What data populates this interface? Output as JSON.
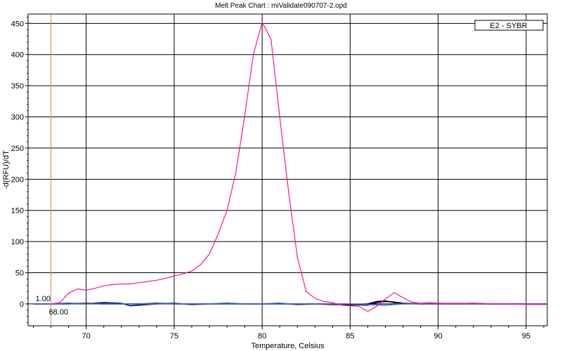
{
  "chart_data": {
    "type": "line",
    "title": "Melt Peak Chart : miValidate090707-2.opd",
    "xlabel": "Temperature, Celsius",
    "ylabel": "-d(RFU)/dT",
    "xlim": [
      66.7,
      96.2
    ],
    "ylim": [
      -35,
      465
    ],
    "x_ticks": [
      70,
      75,
      80,
      85,
      90,
      95
    ],
    "y_ticks": [
      0,
      50,
      100,
      150,
      200,
      250,
      300,
      350,
      400,
      450
    ],
    "grid": true,
    "legend_position": "top-right",
    "legend": [
      "E2 - SYBR"
    ],
    "marker": {
      "x": 68.0,
      "label_x": "68.00",
      "label_y": "1.00",
      "color": "#d08a50"
    },
    "series": [
      {
        "name": "E2 - SYBR",
        "color": "#ff1493",
        "x": [
          68.0,
          68.5,
          69.0,
          69.5,
          70.0,
          70.5,
          71.0,
          71.5,
          72.0,
          72.5,
          73.0,
          73.5,
          74.0,
          74.5,
          75.0,
          75.5,
          76.0,
          76.5,
          77.0,
          77.5,
          78.0,
          78.5,
          79.0,
          79.5,
          80.0,
          80.5,
          81.0,
          81.5,
          82.0,
          82.5,
          83.0,
          83.5,
          84.0,
          84.5,
          85.0,
          85.5,
          86.0,
          86.5,
          87.0,
          87.5,
          88.0,
          88.5,
          89.0,
          89.5,
          90.0,
          91.0,
          92.0,
          93.0,
          94.0,
          95.0,
          96.2
        ],
        "values": [
          0,
          2,
          17,
          24,
          22,
          25,
          29,
          31,
          32,
          32,
          34,
          36,
          38,
          41,
          45,
          48,
          53,
          63,
          80,
          112,
          150,
          210,
          300,
          400,
          452,
          425,
          300,
          180,
          75,
          20,
          9,
          4,
          2,
          -2,
          -3,
          -4,
          -12,
          -4,
          8,
          18,
          10,
          3,
          1,
          2,
          1,
          1,
          1,
          0,
          0,
          -1,
          -1
        ]
      },
      {
        "name": "",
        "color": "#000080",
        "x": [
          67.0,
          68.0,
          69.0,
          70.0,
          71.0,
          72.0,
          72.5,
          73.0,
          74.0,
          75.0,
          76.0,
          77.0,
          78.0,
          79.0,
          80.0,
          81.0,
          82.0,
          83.0,
          84.0,
          85.0,
          86.0,
          86.5,
          87.0,
          87.5,
          88.0,
          89.0,
          90.0,
          91.0,
          92.0,
          93.0,
          94.0,
          95.0,
          96.2
        ],
        "values": [
          0,
          0,
          1,
          0,
          2,
          1,
          -3,
          -2,
          0,
          1,
          -1,
          0,
          1,
          0,
          0,
          1,
          -1,
          0,
          0,
          -2,
          0,
          4,
          5,
          2,
          1,
          0,
          1,
          0,
          1,
          0,
          0,
          0,
          0
        ]
      },
      {
        "name": "",
        "color": "#000000",
        "x": [
          67.0,
          68.0,
          69.0,
          70.0,
          71.0,
          72.0,
          73.0,
          74.0,
          75.0,
          76.0,
          77.0,
          78.0,
          79.0,
          80.0,
          81.0,
          82.0,
          83.0,
          84.0,
          85.0,
          86.0,
          86.5,
          87.0,
          87.5,
          88.0,
          89.0,
          90.0,
          91.0,
          92.0,
          93.0,
          94.0,
          95.0,
          96.2
        ],
        "values": [
          0,
          0,
          0,
          1,
          0,
          0,
          0,
          1,
          0,
          0,
          0,
          0,
          0,
          0,
          0,
          0,
          0,
          -1,
          -1,
          -2,
          2,
          4,
          3,
          1,
          0,
          0,
          0,
          0,
          0,
          0,
          0,
          0
        ]
      },
      {
        "name": "",
        "color": "#4169e1",
        "x": [
          67.0,
          70.0,
          75.0,
          80.0,
          85.0,
          86.0,
          87.0,
          88.0,
          90.0,
          95.0,
          96.2
        ],
        "values": [
          0,
          0,
          0,
          0,
          0,
          -1,
          -2,
          0,
          0,
          0,
          0
        ]
      }
    ]
  }
}
